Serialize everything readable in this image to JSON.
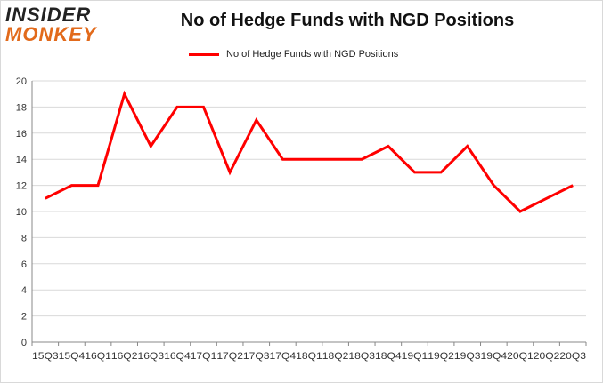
{
  "logo": {
    "line1": "INSIDER",
    "line2": "MONKEY"
  },
  "chart_data": {
    "type": "line",
    "title": "No of Hedge Funds with NGD Positions",
    "xlabel": "",
    "ylabel": "",
    "ylim": [
      0,
      20
    ],
    "yticks": [
      0,
      2,
      4,
      6,
      8,
      10,
      12,
      14,
      16,
      18,
      20
    ],
    "grid": true,
    "legend_position": "top-center",
    "categories": [
      "15Q3",
      "15Q4",
      "16Q1",
      "16Q2",
      "16Q3",
      "16Q4",
      "17Q1",
      "17Q2",
      "17Q3",
      "17Q4",
      "18Q1",
      "18Q2",
      "18Q3",
      "18Q4",
      "19Q1",
      "19Q2",
      "19Q3",
      "19Q4",
      "20Q1",
      "20Q2",
      "20Q3"
    ],
    "series": [
      {
        "name": "No of Hedge Funds with NGD Positions",
        "color": "#ff0000",
        "values": [
          11,
          12,
          12,
          19,
          15,
          18,
          18,
          13,
          17,
          14,
          14,
          14,
          14,
          15,
          13,
          13,
          15,
          12,
          10,
          11,
          12
        ]
      }
    ]
  }
}
